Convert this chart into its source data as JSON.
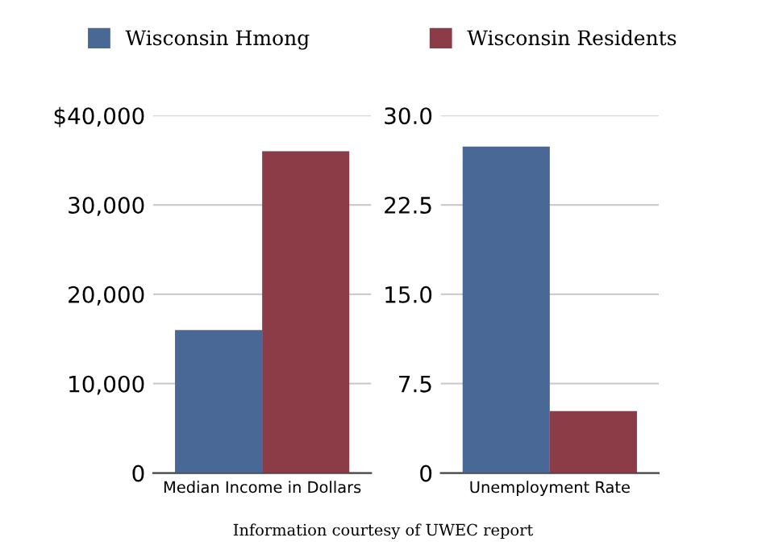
{
  "chart_data": [
    {
      "type": "bar",
      "categories": [
        "Median Income in Dollars"
      ],
      "series": [
        {
          "name": "Wisconsin Hmong",
          "color": "#4a6896",
          "values": [
            16000
          ]
        },
        {
          "name": "Wisconsin Residents",
          "color": "#8c3c47",
          "values": [
            36000
          ]
        }
      ],
      "ylim": [
        0,
        40000
      ],
      "yticks": [
        0,
        {
          "value": 10000,
          "label": "10,000"
        },
        {
          "value": 20000,
          "label": "20,000"
        },
        {
          "value": 30000,
          "label": "30,000"
        },
        {
          "value": 40000,
          "label": "$40,000"
        }
      ],
      "grid": "y",
      "legend": "top",
      "annotations": [
        "Information courtesy of UWEC report"
      ]
    },
    {
      "type": "bar",
      "categories": [
        "Unemployment Rate"
      ],
      "series": [
        {
          "name": "Wisconsin Hmong",
          "color": "#4a6896",
          "values": [
            27.4
          ]
        },
        {
          "name": "Wisconsin Residents",
          "color": "#8c3c47",
          "values": [
            5.2
          ]
        }
      ],
      "ylim": [
        0,
        30
      ],
      "yticks": [
        0,
        7.5,
        {
          "value": 15,
          "label": "15.0"
        },
        22.5,
        {
          "value": 30,
          "label": "30.0"
        }
      ],
      "grid": "y",
      "legend": "top"
    }
  ]
}
